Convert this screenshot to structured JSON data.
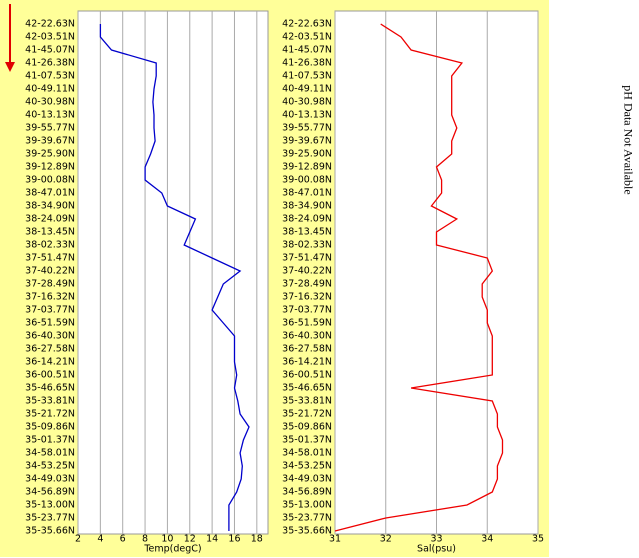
{
  "chart_data": [
    {
      "type": "line",
      "xlabel": "Temp(degC)",
      "color": "#0000cc",
      "grid": true,
      "categories": [
        "42-22.63N",
        "42-03.51N",
        "41-45.07N",
        "41-26.38N",
        "41-07.53N",
        "40-49.11N",
        "40-30.98N",
        "40-13.13N",
        "39-55.77N",
        "39-39.67N",
        "39-25.90N",
        "39-12.89N",
        "39-00.08N",
        "38-47.01N",
        "38-34.90N",
        "38-24.09N",
        "38-13.45N",
        "38-02.33N",
        "37-51.47N",
        "37-40.22N",
        "37-28.49N",
        "37-16.32N",
        "37-03.77N",
        "36-51.59N",
        "36-40.30N",
        "36-27.58N",
        "36-14.21N",
        "36-00.51N",
        "35-46.65N",
        "35-33.81N",
        "35-21.72N",
        "35-09.86N",
        "35-01.37N",
        "34-58.01N",
        "34-53.25N",
        "34-49.03N",
        "34-56.89N",
        "35-13.00N",
        "35-23.77N",
        "35-35.66N"
      ],
      "values": [
        4,
        4,
        5,
        9,
        9,
        8.8,
        8.7,
        8.8,
        8.8,
        8.9,
        8.5,
        8,
        8,
        9.5,
        10,
        12.5,
        12,
        11.5,
        14,
        16.5,
        15,
        14.5,
        14,
        15,
        16,
        16,
        16,
        16.2,
        16,
        16.3,
        16.5,
        17.3,
        16.8,
        16.5,
        16.7,
        16.6,
        16.2,
        15.5,
        15.5,
        15.5
      ],
      "xlim": [
        2,
        19
      ],
      "xticks": [
        2,
        4,
        6,
        8,
        10,
        12,
        14,
        16,
        18
      ]
    },
    {
      "type": "line",
      "xlabel": "Sal(psu)",
      "color": "#ee0000",
      "grid": true,
      "categories": [
        "42-22.63N",
        "42-03.51N",
        "41-45.07N",
        "41-26.38N",
        "41-07.53N",
        "40-49.11N",
        "40-30.98N",
        "40-13.13N",
        "39-55.77N",
        "39-39.67N",
        "39-25.90N",
        "39-12.89N",
        "39-00.08N",
        "38-47.01N",
        "38-34.90N",
        "38-24.09N",
        "38-13.45N",
        "38-02.33N",
        "37-51.47N",
        "37-40.22N",
        "37-28.49N",
        "37-16.32N",
        "37-03.77N",
        "36-51.59N",
        "36-40.30N",
        "36-27.58N",
        "36-14.21N",
        "36-00.51N",
        "35-46.65N",
        "35-33.81N",
        "35-21.72N",
        "35-09.86N",
        "35-01.37N",
        "34-58.01N",
        "34-53.25N",
        "34-49.03N",
        "34-56.89N",
        "35-13.00N",
        "35-23.77N",
        "35-35.66N"
      ],
      "values": [
        31.9,
        32.3,
        32.5,
        33.5,
        33.3,
        33.3,
        33.3,
        33.3,
        33.4,
        33.3,
        33.3,
        33,
        33.1,
        33.1,
        32.9,
        33.4,
        33,
        33,
        34,
        34.1,
        33.9,
        33.9,
        34,
        34,
        34.1,
        34.1,
        34.1,
        34.1,
        32.5,
        34.1,
        34.2,
        34.2,
        34.3,
        34.3,
        34.2,
        34.2,
        34.1,
        33.6,
        32,
        31
      ],
      "xlim": [
        31,
        35
      ],
      "xticks": [
        31,
        32,
        33,
        34,
        35
      ]
    }
  ],
  "annotation": "pH Data Not Available"
}
